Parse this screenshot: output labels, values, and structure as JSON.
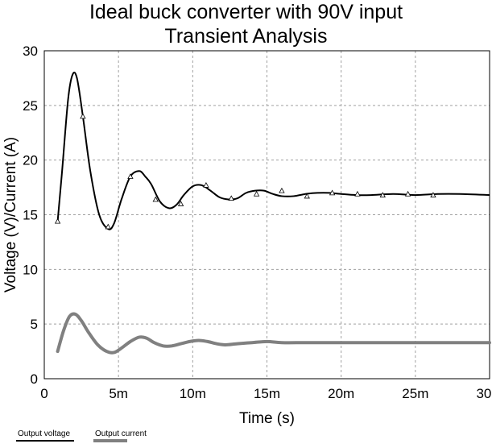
{
  "chart_data": {
    "type": "line",
    "title": "Ideal buck converter with 90V input",
    "subtitle": "Transient Analysis",
    "xlabel": "Time (s)",
    "ylabel": "Voltage (V)/Current (A)",
    "xlim": [
      0,
      0.03
    ],
    "ylim": [
      0,
      30
    ],
    "x_ticks": [
      0,
      0.005,
      0.01,
      0.015,
      0.02,
      0.025,
      0.03
    ],
    "x_tick_labels": [
      "0",
      "5m",
      "10m",
      "15m",
      "20m",
      "25m",
      "30m"
    ],
    "y_ticks": [
      0,
      5,
      10,
      15,
      20,
      25,
      30
    ],
    "y_tick_labels": [
      "0",
      "5",
      "10",
      "15",
      "20",
      "25",
      "30"
    ],
    "grid": true,
    "legend_position": "bottom-left",
    "series": [
      {
        "name": "Output voltage",
        "color": "#000000",
        "marker": "triangle",
        "x": [
          0.0009,
          0.0012,
          0.0016,
          0.0019,
          0.0022,
          0.0026,
          0.0031,
          0.0037,
          0.0043,
          0.0047,
          0.0052,
          0.0058,
          0.0064,
          0.0068,
          0.0072,
          0.0078,
          0.0084,
          0.0089,
          0.0094,
          0.01,
          0.0106,
          0.0112,
          0.0118,
          0.0124,
          0.013,
          0.0136,
          0.0142,
          0.0148,
          0.0154,
          0.016,
          0.0168,
          0.0176,
          0.0184,
          0.0192,
          0.02,
          0.021,
          0.022,
          0.0235,
          0.025,
          0.0265,
          0.028,
          0.03
        ],
        "y": [
          14.4,
          19.0,
          25.5,
          27.8,
          27.5,
          24.0,
          19.0,
          15.0,
          13.7,
          14.2,
          16.4,
          18.5,
          19.0,
          18.5,
          17.8,
          16.2,
          15.6,
          15.9,
          16.8,
          17.6,
          17.7,
          17.2,
          16.6,
          16.4,
          16.5,
          17.0,
          17.2,
          17.2,
          16.9,
          16.7,
          16.7,
          16.9,
          17.0,
          17.0,
          16.9,
          16.8,
          16.8,
          16.9,
          16.8,
          16.9,
          16.9,
          16.8
        ],
        "marker_x": [
          0.0009,
          0.0026,
          0.0043,
          0.0058,
          0.0075,
          0.0092,
          0.0109,
          0.0126,
          0.0143,
          0.016,
          0.0177,
          0.0194,
          0.0211,
          0.0228,
          0.0245,
          0.0262
        ],
        "marker_y": [
          14.4,
          24.0,
          13.9,
          18.5,
          16.4,
          16.0,
          17.7,
          16.5,
          16.9,
          17.2,
          16.7,
          17.0,
          16.9,
          16.8,
          16.9,
          16.8
        ]
      },
      {
        "name": "Output current",
        "color": "#808080",
        "x": [
          0.0009,
          0.0013,
          0.0017,
          0.0021,
          0.0025,
          0.003,
          0.0036,
          0.0042,
          0.0047,
          0.0052,
          0.0058,
          0.0064,
          0.0069,
          0.0074,
          0.008,
          0.0086,
          0.0092,
          0.0098,
          0.0104,
          0.011,
          0.0116,
          0.0122,
          0.013,
          0.014,
          0.015,
          0.016,
          0.0175,
          0.019,
          0.021,
          0.024,
          0.027,
          0.03
        ],
        "y": [
          2.5,
          4.4,
          5.7,
          5.9,
          5.3,
          4.2,
          3.1,
          2.5,
          2.4,
          2.8,
          3.4,
          3.8,
          3.7,
          3.3,
          3.0,
          3.0,
          3.2,
          3.4,
          3.5,
          3.4,
          3.2,
          3.1,
          3.2,
          3.3,
          3.4,
          3.3,
          3.3,
          3.3,
          3.3,
          3.3,
          3.3,
          3.3
        ]
      }
    ]
  }
}
